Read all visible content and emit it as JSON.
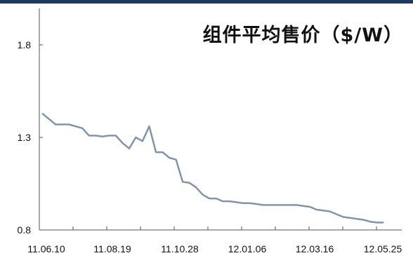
{
  "chart_data": {
    "type": "line",
    "title": "组件平均售价（$/W）",
    "xlabel": "",
    "ylabel": "",
    "x_tick_labels": [
      "11.06.10",
      "11.08.19",
      "11.10.28",
      "12.01.06",
      "12.03.16",
      "12.05.25"
    ],
    "y_ticks": [
      0.8,
      1.3,
      1.8
    ],
    "y_tick_labels": [
      "0.8",
      "1.3",
      "1.8"
    ],
    "ylim": [
      0.8,
      2.0
    ],
    "grid": false,
    "series": [
      {
        "values": [
          1.43,
          1.4,
          1.37,
          1.37,
          1.37,
          1.36,
          1.35,
          1.31,
          1.31,
          1.305,
          1.31,
          1.31,
          1.27,
          1.24,
          1.3,
          1.28,
          1.36,
          1.22,
          1.22,
          1.19,
          1.18,
          1.06,
          1.055,
          1.03,
          0.99,
          0.97,
          0.97,
          0.955,
          0.955,
          0.95,
          0.945,
          0.945,
          0.94,
          0.935,
          0.935,
          0.935,
          0.935,
          0.935,
          0.935,
          0.93,
          0.925,
          0.91,
          0.905,
          0.9,
          0.885,
          0.87,
          0.865,
          0.86,
          0.855,
          0.845,
          0.84,
          0.84
        ]
      }
    ],
    "colors": {
      "line": "#8095ac",
      "axis": "#555555",
      "top_bar": "#1f3a5c"
    }
  }
}
